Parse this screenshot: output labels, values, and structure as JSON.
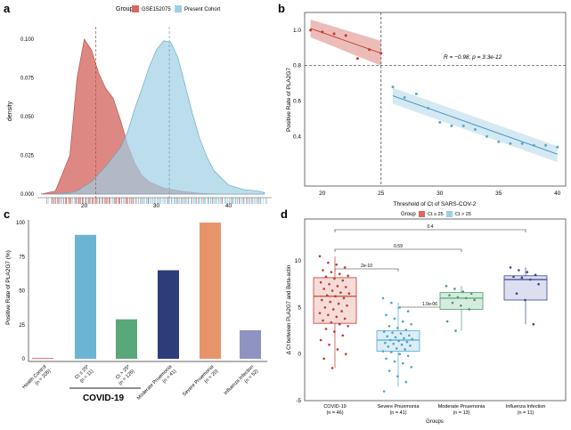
{
  "colors": {
    "red": "#d9534f",
    "red_fill": "#d46a63",
    "blue": "#6cb4d4",
    "blue_fill": "#9fcfe3",
    "green": "#5aa77a",
    "navy": "#2c3e7a",
    "orange": "#e8946b",
    "lavender": "#8f93c2"
  },
  "chart_data": [
    {
      "panel": "a",
      "type": "area",
      "title": "",
      "xlabel": "",
      "ylabel": "density",
      "legend_title": "Group",
      "legend_position": "top",
      "series": [
        {
          "name": "GSE152075",
          "color_key": "red",
          "x": [
            14,
            16,
            18,
            19,
            20,
            21,
            22,
            23,
            24,
            25,
            26,
            27,
            28,
            29,
            30,
            31,
            32,
            34,
            36,
            38,
            40,
            42,
            44,
            45
          ],
          "values": [
            0.0,
            0.02,
            0.25,
            0.75,
            1.0,
            0.93,
            0.78,
            0.68,
            0.62,
            0.48,
            0.32,
            0.2,
            0.12,
            0.08,
            0.06,
            0.04,
            0.03,
            0.015,
            0.005,
            0.0,
            0.0,
            0.0,
            0.0,
            0.0
          ]
        },
        {
          "name": "Present Cohort",
          "color_key": "blue",
          "x": [
            14,
            16,
            18,
            19,
            20,
            21,
            22,
            23,
            24,
            25,
            26,
            27,
            28,
            29,
            30,
            31,
            32,
            33,
            34,
            35,
            36,
            37,
            38,
            40,
            42,
            44,
            45
          ],
          "values": [
            0.0,
            0.0,
            0.01,
            0.02,
            0.05,
            0.08,
            0.13,
            0.18,
            0.24,
            0.3,
            0.4,
            0.55,
            0.68,
            0.82,
            0.93,
            0.99,
            0.98,
            0.88,
            0.7,
            0.52,
            0.36,
            0.24,
            0.15,
            0.06,
            0.03,
            0.02,
            0.01
          ]
        }
      ],
      "vlines": [
        21.6,
        31.8
      ],
      "x_ticks": [
        20,
        30,
        40
      ],
      "y_ticks": [
        "0.000",
        "0.025",
        "0.050",
        "0.075",
        "0.100"
      ],
      "xlim": [
        13.5,
        46
      ],
      "ylim": [
        0,
        1.08
      ],
      "tick_scale": 0.1,
      "rug": true
    },
    {
      "panel": "b",
      "type": "scatter",
      "xlabel": "Threshold of Ct of SARS-COV-2",
      "ylabel": "Positive Rate of PLA2G7",
      "annotation": "R = −0.98, p = 3.3e-12",
      "x_ticks": [
        "20",
        "25",
        "30",
        "35",
        "40"
      ],
      "y_ticks": [
        "1.0",
        "0.8",
        "0.6",
        "0.4"
      ],
      "xlim": [
        18.5,
        40.7
      ],
      "ylim": [
        0.12,
        1.1
      ],
      "vline": 25,
      "hline": 0.8,
      "series": [
        {
          "name": "Ct < 25",
          "color_key": "red",
          "x": [
            19,
            20,
            21,
            22,
            23,
            24,
            25
          ],
          "values": [
            1.0,
            0.99,
            0.98,
            0.97,
            0.84,
            0.89,
            0.87
          ]
        },
        {
          "name": "Ct ≥ 25",
          "color_key": "blue",
          "x": [
            26,
            27,
            28,
            29,
            30,
            31,
            32,
            33,
            34,
            35,
            36,
            37,
            38,
            39,
            40
          ],
          "values": [
            0.68,
            0.62,
            0.64,
            0.56,
            0.48,
            0.46,
            0.46,
            0.44,
            0.4,
            0.37,
            0.36,
            0.36,
            0.35,
            0.35,
            0.34
          ]
        }
      ],
      "fits": [
        {
          "color_key": "red",
          "x": [
            19,
            25
          ],
          "y": [
            1.01,
            0.87
          ],
          "band": [
            0.05,
            0.07
          ]
        },
        {
          "color_key": "blue",
          "x": [
            26,
            40
          ],
          "y": [
            0.63,
            0.3
          ],
          "band": [
            0.045,
            0.045
          ]
        }
      ]
    },
    {
      "panel": "c",
      "type": "bar",
      "ylabel": "Positive Rate of PLA2G7 (%)",
      "categories": [
        "Health Control\n(n = 205)",
        "Ct ≤ 25*\n(n = 11)",
        "Ct > 25*\n(n = 126)",
        "Moderate Pnuemonia\n(n = 41)",
        "Severe Pnuemonia\n(n = 20)",
        "Influenza Infection\n(n = 52)"
      ],
      "values": [
        0.5,
        91,
        29,
        65,
        100,
        21
      ],
      "color_keys": [
        "red",
        "blue",
        "green",
        "navy",
        "orange",
        "lavender"
      ],
      "ylim": [
        0,
        100
      ],
      "y_ticks": [
        "0",
        "25",
        "50",
        "75",
        "100"
      ],
      "group_label": "COVID-19"
    },
    {
      "panel": "d",
      "type": "box",
      "xlabel": "Groups",
      "ylabel": "Δ Ct between PLA2G7 and Beta-actin",
      "legend_title": "Group",
      "legend_position": "top",
      "legend": [
        {
          "name": "Ct ≤ 25",
          "color_key": "red"
        },
        {
          "name": "Ct > 25",
          "color_key": "blue"
        }
      ],
      "categories": [
        "COVID-19\n(n = 46)",
        "Severe Pnuemonia\n(n = 41)",
        "Moderate Pnuemonia\n(n = 13)",
        "Influenza Infection\n(n = 11)"
      ],
      "boxes": [
        {
          "min": -1.5,
          "q1": 3.3,
          "median": 6.2,
          "q3": 8.2,
          "max": 10.5,
          "color_key": "red"
        },
        {
          "min": -3.5,
          "q1": 0.3,
          "median": 1.5,
          "q3": 2.5,
          "max": 5.5,
          "color_key": "blue"
        },
        {
          "min": 2.5,
          "q1": 4.8,
          "median": 6.0,
          "q3": 6.6,
          "max": 7.3,
          "color_key": "green"
        },
        {
          "min": 3.2,
          "q1": 5.8,
          "median": 8.0,
          "q3": 8.4,
          "max": 9.3,
          "color_key": "navy"
        }
      ],
      "points": [
        [
          10.5,
          9.8,
          9.6,
          9.3,
          9.0,
          8.8,
          8.6,
          8.4,
          8.3,
          8.1,
          7.9,
          7.7,
          7.5,
          7.3,
          7.2,
          7.0,
          6.8,
          6.6,
          6.5,
          6.3,
          6.2,
          6.0,
          5.8,
          5.6,
          5.4,
          5.2,
          5.0,
          4.8,
          4.6,
          4.4,
          4.2,
          4.0,
          3.8,
          3.6,
          3.4,
          3.2,
          3.0,
          2.7,
          2.4,
          2.0,
          1.5,
          1.0,
          0.5,
          0.0,
          -0.5,
          -1.5
        ],
        [
          6.0,
          5.5,
          5.0,
          4.6,
          4.2,
          3.8,
          3.5,
          3.2,
          3.0,
          2.8,
          2.6,
          2.4,
          2.3,
          2.2,
          2.0,
          1.9,
          1.8,
          1.7,
          1.6,
          1.5,
          1.4,
          1.3,
          1.2,
          1.1,
          1.0,
          0.9,
          0.8,
          0.6,
          0.5,
          0.3,
          0.2,
          0.0,
          -0.2,
          -0.5,
          -0.8,
          -1.0,
          -1.4,
          -1.8,
          -2.4,
          -3.0,
          -4.0
        ],
        [
          7.3,
          7.0,
          6.7,
          6.5,
          6.3,
          6.1,
          6.0,
          5.8,
          5.5,
          5.2,
          4.8,
          3.5,
          2.5
        ],
        [
          9.3,
          9.0,
          8.8,
          8.5,
          8.3,
          8.2,
          8.0,
          7.5,
          6.5,
          5.8,
          3.2
        ]
      ],
      "ylim": [
        -5,
        14.5
      ],
      "y_ticks": [
        "10",
        "5",
        "0",
        "-5"
      ],
      "comparisons": [
        {
          "from": 0,
          "to": 1,
          "label": "2e-10"
        },
        {
          "from": 1,
          "to": 2,
          "label": "1.0e-06"
        },
        {
          "from": 0,
          "to": 2,
          "label": "0.59"
        },
        {
          "from": 0,
          "to": 3,
          "label": "0.4"
        }
      ]
    }
  ],
  "panel_labels": [
    "a",
    "b",
    "c",
    "d"
  ]
}
